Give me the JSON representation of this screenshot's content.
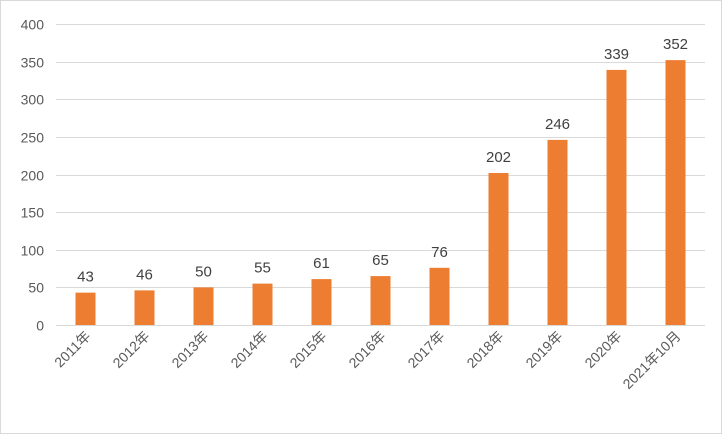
{
  "chart_data": {
    "type": "bar",
    "categories": [
      "2011年",
      "2012年",
      "2013年",
      "2014年",
      "2015年",
      "2016年",
      "2017年",
      "2018年",
      "2019年",
      "2020年",
      "2021年10月"
    ],
    "values": [
      43,
      46,
      50,
      55,
      61,
      65,
      76,
      202,
      246,
      339,
      352
    ],
    "data_labels": [
      "43",
      "46",
      "50",
      "55",
      "61",
      "65",
      "76",
      "202",
      "246",
      "339",
      "352"
    ],
    "y_ticks": [
      "0",
      "50",
      "100",
      "150",
      "200",
      "250",
      "300",
      "350",
      "400"
    ],
    "ylim": [
      0,
      400
    ],
    "title": "",
    "xlabel": "",
    "ylabel": "",
    "grid": "horizontal",
    "legend": "none",
    "bar_color": "#ED7D31",
    "grid_color": "#d9d9d9"
  }
}
